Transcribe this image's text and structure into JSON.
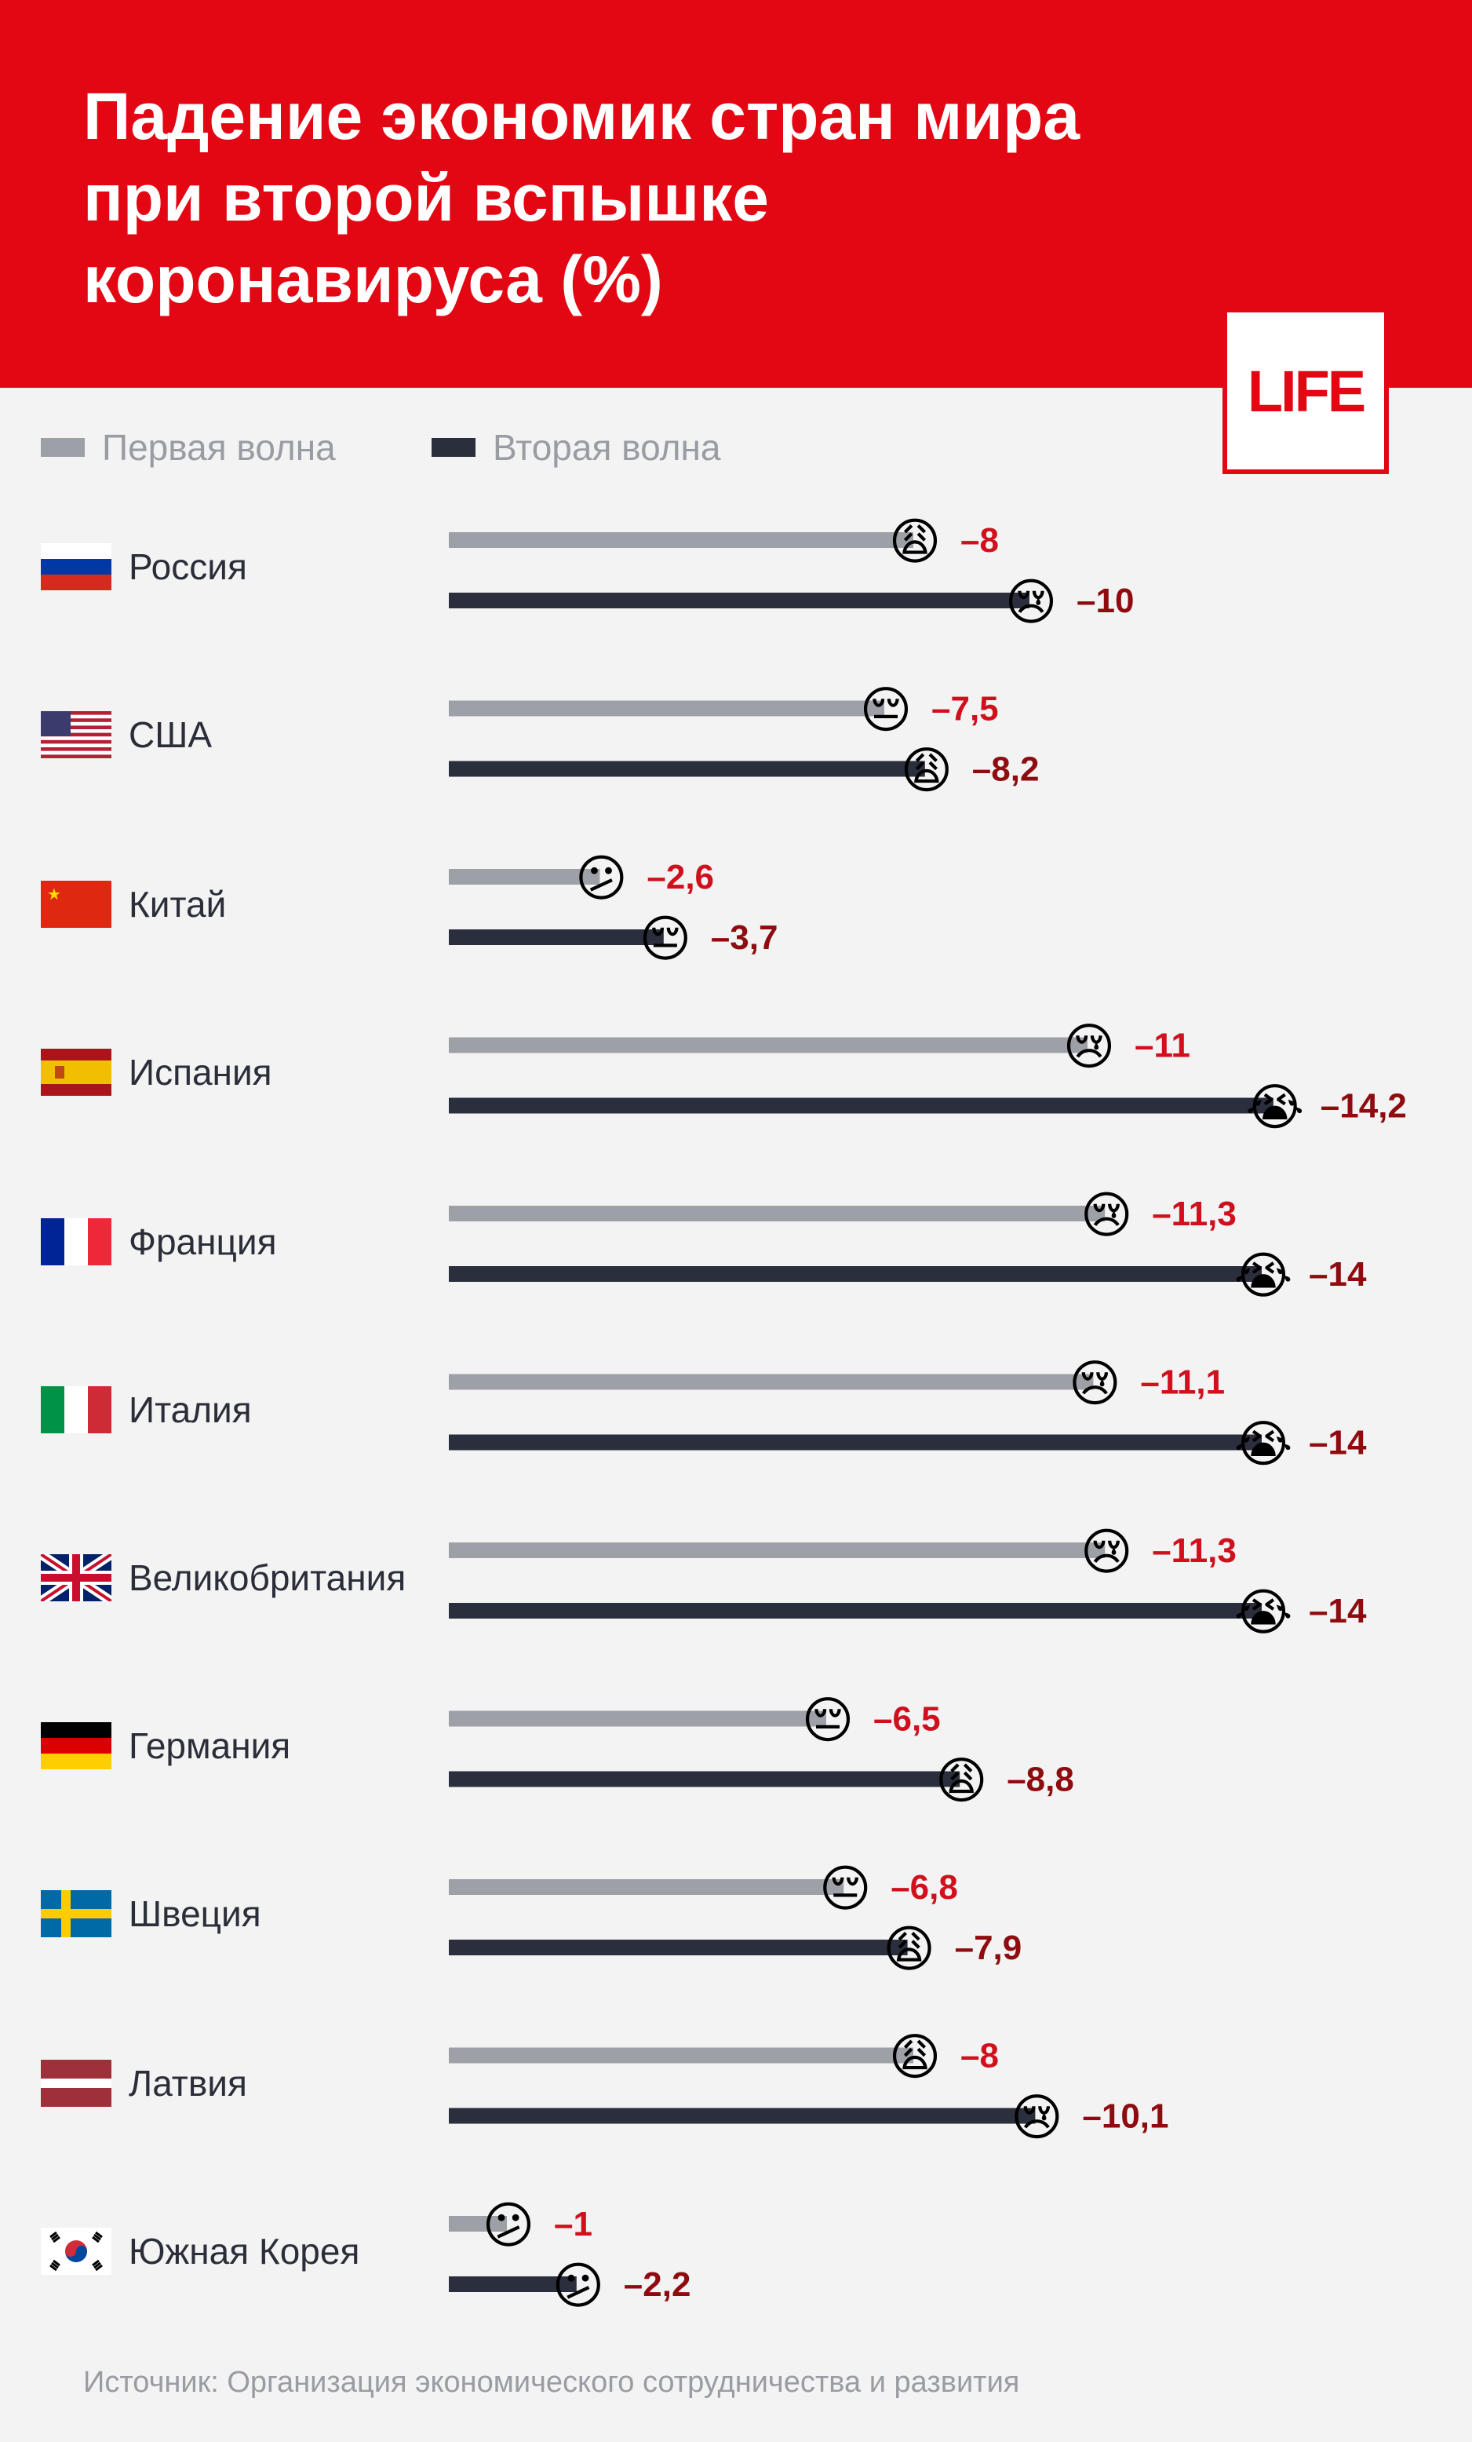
{
  "title_lines": [
    "Падение экономик стран мира",
    "при второй вспышке",
    "коронавируса (%)"
  ],
  "logo": "LIFE",
  "source": "Источник: Организация экономического сотрудничества и развития",
  "colors": {
    "header": "#e30613",
    "first_wave": "#9ea0a8",
    "second_wave": "#2b2e3c",
    "first_value": "#d0101c",
    "second_value": "#8e0c10"
  },
  "chart_data": {
    "type": "bar",
    "orientation": "horizontal",
    "legend_position": "top-left",
    "categories": [
      "Россия",
      "США",
      "Китай",
      "Испания",
      "Франция",
      "Италия",
      "Великобритания",
      "Германия",
      "Швеция",
      "Латвия",
      "Южная Корея"
    ],
    "flags": [
      "russia-flag",
      "usa-flag",
      "china-flag",
      "spain-flag",
      "france-flag",
      "italy-flag",
      "uk-flag",
      "germany-flag",
      "sweden-flag",
      "latvia-flag",
      "south-korea-flag"
    ],
    "series": [
      {
        "name": "Первая волна",
        "values": [
          -8,
          -7.5,
          -2.6,
          -11,
          -11.3,
          -11.1,
          -11.3,
          -6.5,
          -6.8,
          -8,
          -1
        ],
        "labels": [
          "–8",
          "–7,5",
          "–2,6",
          "–11",
          "–11,3",
          "–11,1",
          "–11,3",
          "–6,5",
          "–6,8",
          "–8",
          "–1"
        ],
        "emoji": [
          "😩",
          "😔",
          "😕",
          "😢",
          "😢",
          "😢",
          "😢",
          "😔",
          "😔",
          "😩",
          "😕"
        ]
      },
      {
        "name": "Вторая волна",
        "values": [
          -10,
          -8.2,
          -3.7,
          -14.2,
          -14,
          -14,
          -14,
          -8.8,
          -7.9,
          -10.1,
          -2.2
        ],
        "labels": [
          "–10",
          "–8,2",
          "–3,7",
          "–14,2",
          "–14",
          "–14",
          "–14",
          "–8,8",
          "–7,9",
          "–10,1",
          "–2,2"
        ],
        "emoji": [
          "😢",
          "😩",
          "😔",
          "😭",
          "😭",
          "😭",
          "😭",
          "😩",
          "😩",
          "😢",
          "😕"
        ]
      }
    ]
  }
}
